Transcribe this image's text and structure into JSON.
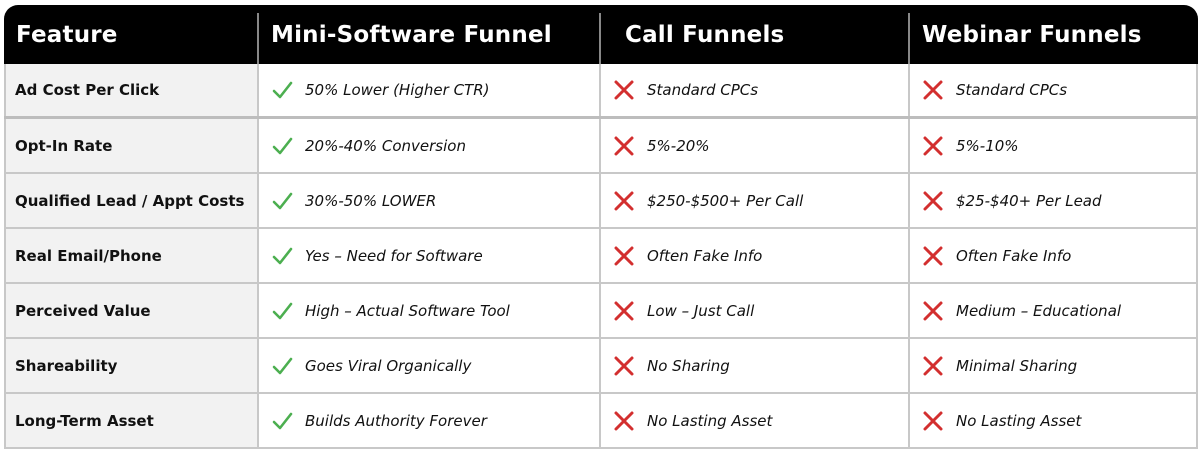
{
  "headers": [
    "Feature",
    "Mini-Software Funnel",
    "Call Funnels",
    "Webinar Funnels"
  ],
  "colors": {
    "check": "#4caf50",
    "cross": "#d32f2f",
    "header_bg": "#000000",
    "feature_bg": "#f2f2f2"
  },
  "rows": [
    {
      "feature": "Ad Cost Per Click",
      "mini": {
        "icon": "check-icon",
        "text": "50% Lower (Higher CTR)"
      },
      "call": {
        "icon": "x-icon",
        "text": "Standard CPCs"
      },
      "webinar": {
        "icon": "x-icon",
        "text": "Standard CPCs"
      }
    },
    {
      "feature": "Opt-In Rate",
      "mini": {
        "icon": "check-icon",
        "text": "20%-40% Conversion"
      },
      "call": {
        "icon": "x-icon",
        "text": "5%-20%"
      },
      "webinar": {
        "icon": "x-icon",
        "text": "5%-10%"
      }
    },
    {
      "feature": "Qualified Lead / Appt Costs",
      "mini": {
        "icon": "check-icon",
        "text": "30%-50% LOWER"
      },
      "call": {
        "icon": "x-icon",
        "text": "$250-$500+ Per Call"
      },
      "webinar": {
        "icon": "x-icon",
        "text": "$25-$40+ Per Lead"
      }
    },
    {
      "feature": "Real Email/Phone",
      "mini": {
        "icon": "check-icon",
        "text": "Yes – Need for Software"
      },
      "call": {
        "icon": "x-icon",
        "text": "Often Fake Info"
      },
      "webinar": {
        "icon": "x-icon",
        "text": "Often Fake Info"
      }
    },
    {
      "feature": "Perceived Value",
      "mini": {
        "icon": "check-icon",
        "text": "High – Actual Software Tool"
      },
      "call": {
        "icon": "x-icon",
        "text": "Low – Just Call"
      },
      "webinar": {
        "icon": "x-icon",
        "text": "Medium – Educational"
      }
    },
    {
      "feature": "Shareability",
      "mini": {
        "icon": "check-icon",
        "text": "Goes Viral Organically"
      },
      "call": {
        "icon": "x-icon",
        "text": "No Sharing"
      },
      "webinar": {
        "icon": "x-icon",
        "text": "Minimal Sharing"
      }
    },
    {
      "feature": "Long-Term Asset",
      "mini": {
        "icon": "check-icon",
        "text": "Builds Authority Forever"
      },
      "call": {
        "icon": "x-icon",
        "text": "No Lasting Asset"
      },
      "webinar": {
        "icon": "x-icon",
        "text": "No Lasting Asset"
      }
    }
  ]
}
